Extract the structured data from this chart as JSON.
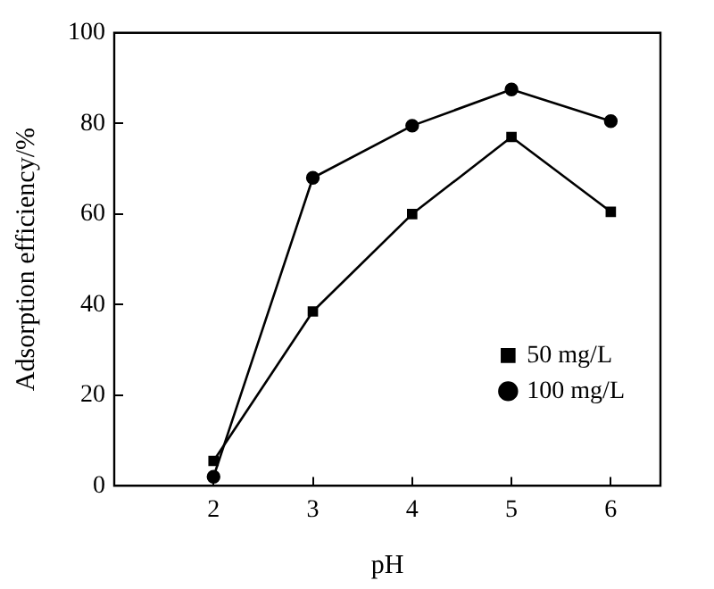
{
  "chart_data": {
    "type": "line",
    "xlabel": "pH",
    "ylabel": "Adsorption efficiency/%",
    "x": [
      2,
      3,
      4,
      5,
      6
    ],
    "xlim": [
      1,
      6.5
    ],
    "xticks": [
      2,
      3,
      4,
      5,
      6
    ],
    "ylim": [
      0,
      100
    ],
    "yticks": [
      0,
      20,
      40,
      60,
      80,
      100
    ],
    "series": [
      {
        "name": "50 mg/L",
        "color": "#000000",
        "marker": "square",
        "values": [
          5.5,
          38.5,
          60,
          77,
          60.5
        ]
      },
      {
        "name": "100 mg/L",
        "color": "#000000",
        "marker": "circle",
        "values": [
          2,
          68,
          79.5,
          87.5,
          80.5
        ]
      }
    ],
    "legend": "bottom right",
    "grid": false,
    "line_style": "solid"
  }
}
